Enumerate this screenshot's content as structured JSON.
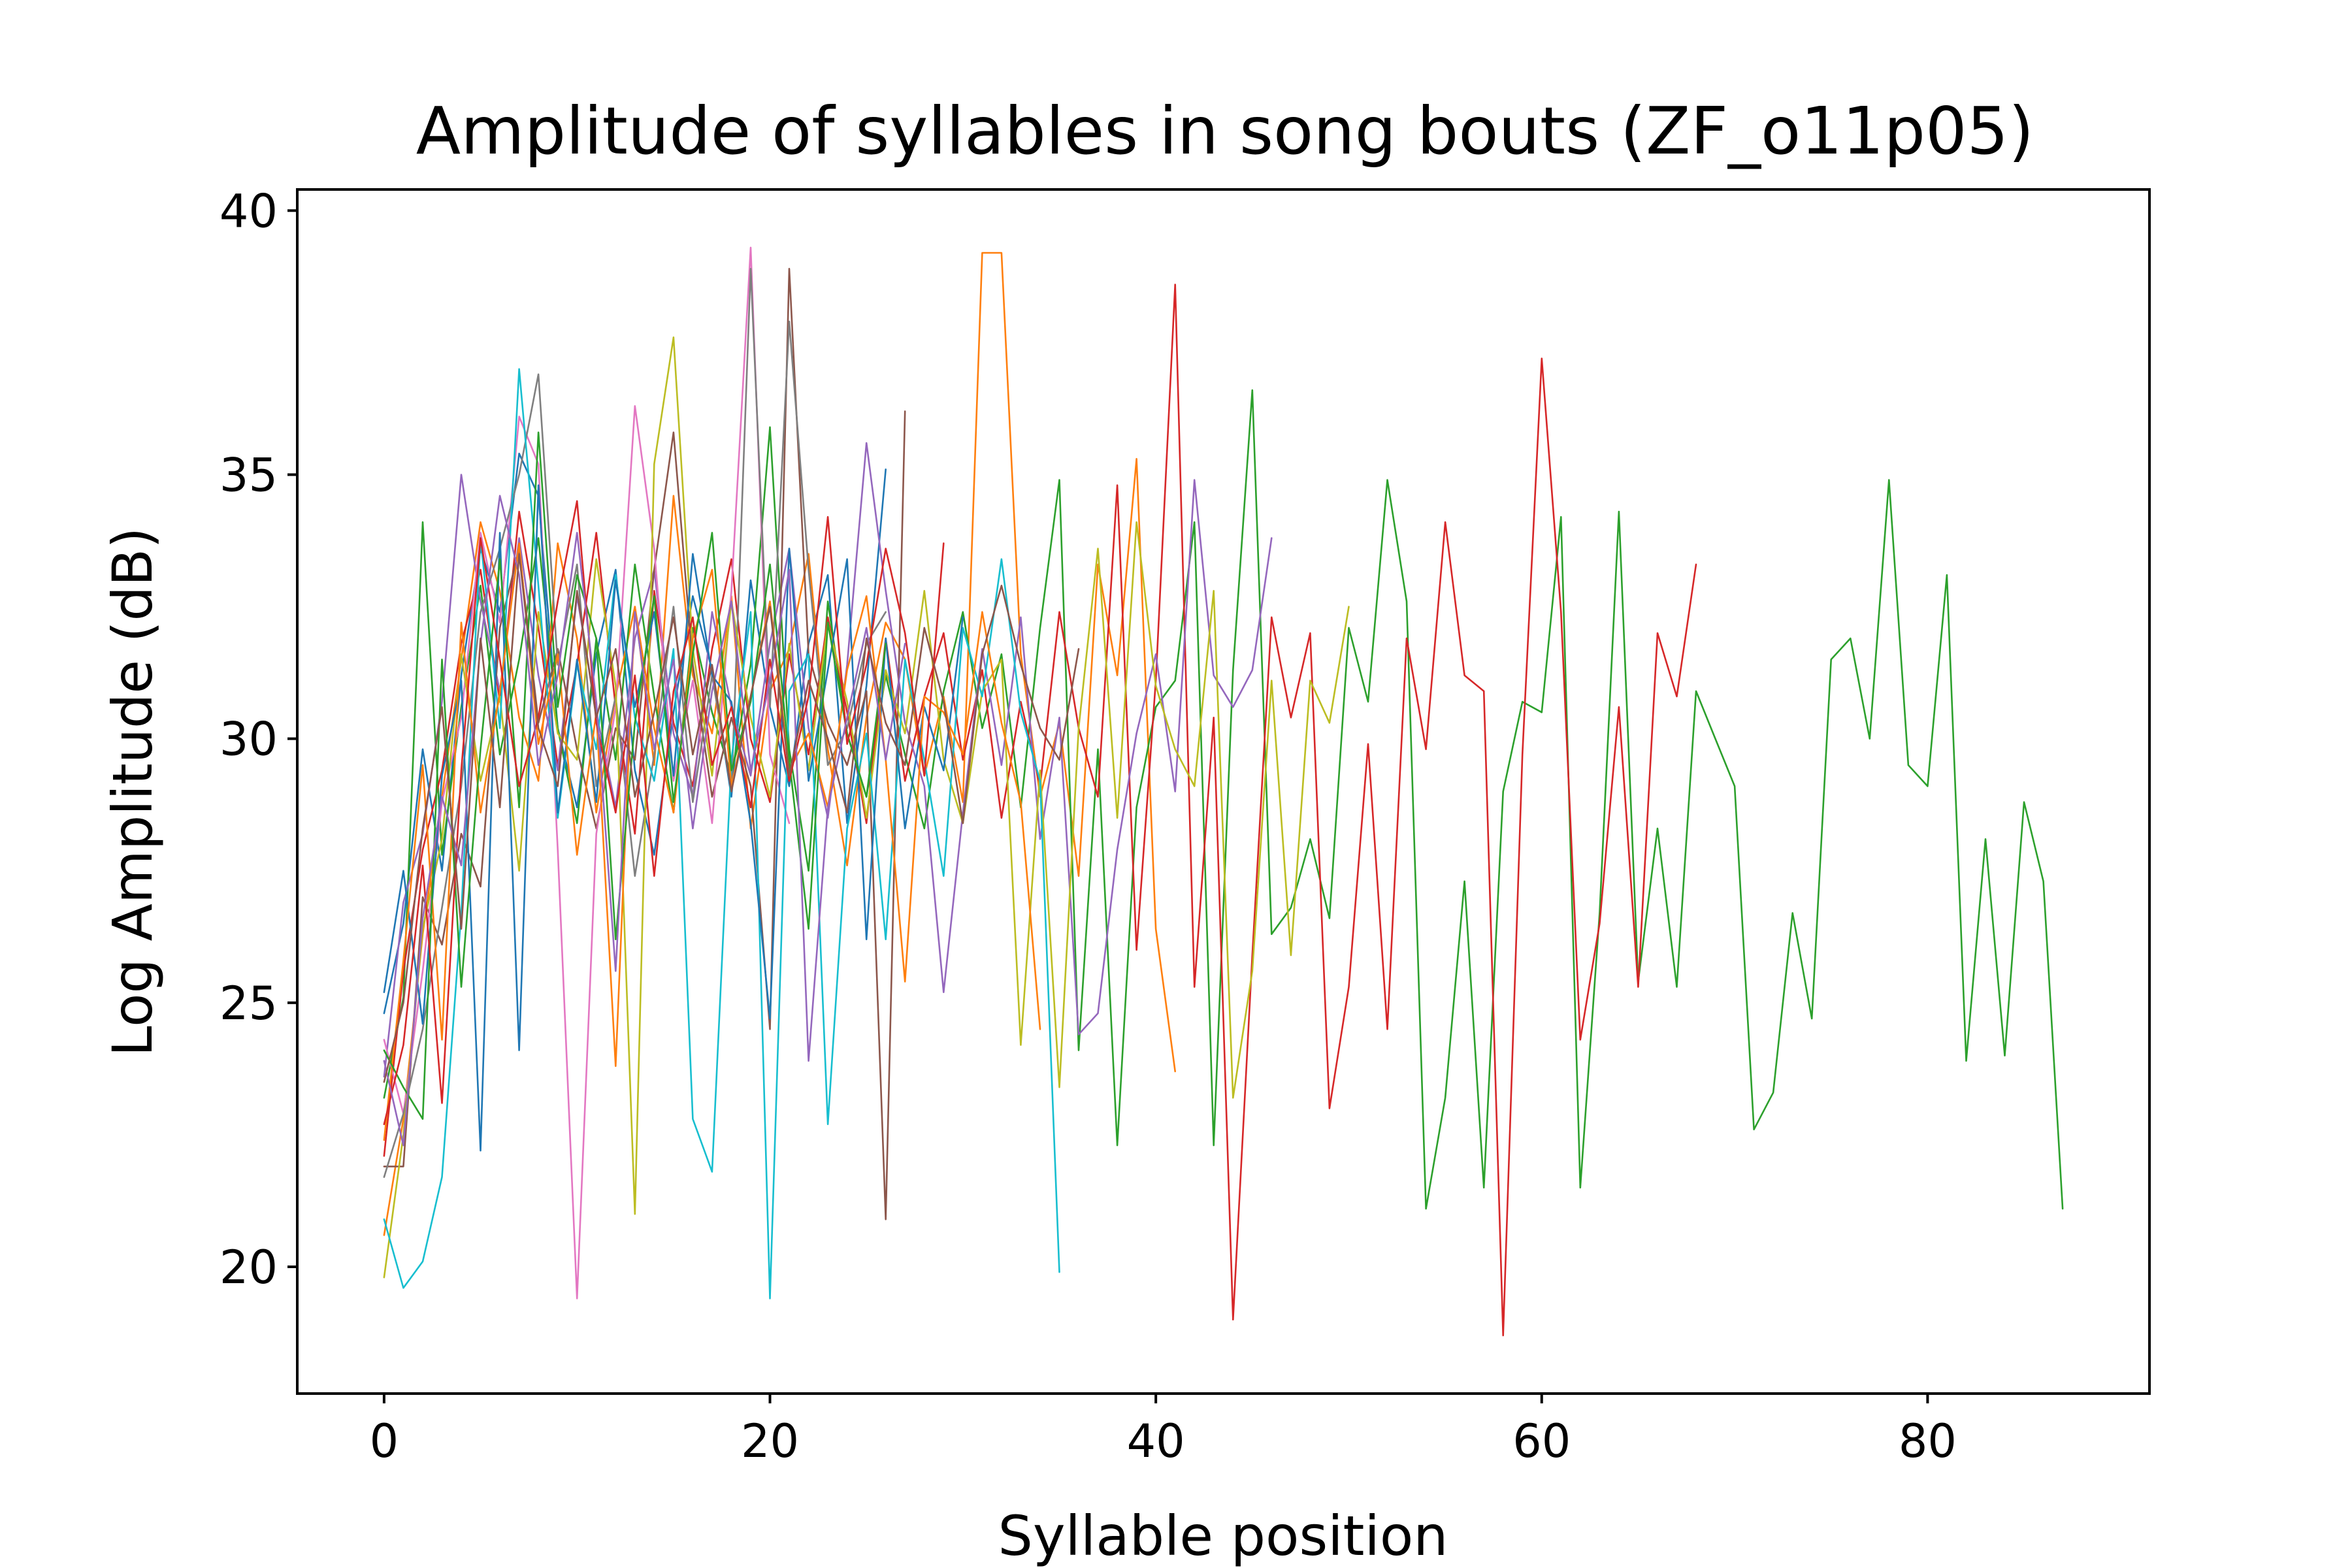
{
  "chart_data": {
    "type": "line",
    "title": "Amplitude of syllables in song bouts (ZF_o11p05)",
    "xlabel": "Syllable position",
    "ylabel": "Log Amplitude (dB)",
    "xlim": [
      -4.5,
      91.5
    ],
    "ylim": [
      17.6,
      40.4
    ],
    "xticks": [
      0,
      20,
      40,
      60,
      80
    ],
    "yticks": [
      20,
      25,
      30,
      35,
      40
    ],
    "grid": false,
    "legend": "none",
    "colors": [
      "#1f77b4",
      "#ff7f0e",
      "#2ca02c",
      "#d62728",
      "#9467bd",
      "#8c564b",
      "#e377c2",
      "#7f7f7f",
      "#bcbd22",
      "#17becf"
    ],
    "series": [
      {
        "x_start": 0,
        "values": [
          24.8,
          26.5,
          29.8,
          27.5,
          31.2,
          33.6,
          32.4,
          35.4,
          34.6,
          30.2,
          28.7,
          31.6,
          33.2,
          29.4,
          27.8,
          30.5,
          32.7,
          31.3,
          28.9,
          33.0,
          30.6,
          29.1,
          31.8,
          33.1,
          28.4,
          31.0,
          35.1
        ]
      },
      {
        "x_start": 0,
        "values": [
          20.6,
          22.8,
          26.3,
          28.9,
          31.5,
          34.1,
          32.8,
          30.4,
          29.2,
          33.7,
          31.9,
          28.6,
          30.8,
          32.5,
          29.5,
          34.6,
          31.2,
          30.1,
          32.7,
          28.3,
          30.9,
          31.7,
          33.5,
          29.8,
          27.6,
          30.4,
          32.2,
          31.5,
          29.3,
          30.8,
          28.8,
          39.2,
          39.2,
          31.6,
          28.9,
          30.3,
          27.4,
          33.3,
          31.2,
          35.3,
          26.4,
          23.7
        ]
      },
      {
        "x_start": 0,
        "values": [
          23.2,
          25.1,
          34.1,
          27.8,
          30.6,
          32.9,
          29.7,
          31.5,
          33.8,
          30.2,
          28.4,
          31.9,
          29.6,
          33.3,
          30.8,
          28.6,
          32.1,
          30.5,
          29.3,
          31.4,
          35.9,
          29.8,
          27.5,
          32.6,
          30.1,
          28.9,
          31.2,
          29.7,
          28.3,
          30.9,
          32.4,
          30.2,
          31.6,
          28.7,
          32.1,
          34.9,
          24.1,
          29.8,
          22.3,
          28.7,
          30.6,
          31.1,
          34.1,
          22.3,
          31.3,
          36.6,
          26.3,
          26.8,
          28.1,
          26.6,
          32.1,
          30.7,
          34.9,
          32.6,
          21.1,
          23.2,
          27.3,
          21.5,
          29.0,
          30.7,
          30.5,
          34.2,
          21.5,
          26.7,
          34.3,
          25.4,
          28.3,
          25.3,
          30.9,
          30.0,
          29.1,
          22.6,
          23.3,
          26.7,
          24.7,
          31.5,
          31.9,
          30.0,
          34.9,
          29.5,
          29.1,
          33.1,
          23.9,
          28.1,
          24.0,
          28.8,
          27.3,
          21.1
        ]
      },
      {
        "x_start": 0,
        "values": [
          22.1,
          25.6,
          27.9,
          29.4,
          31.8,
          33.2,
          30.7,
          34.3,
          32.1,
          29.5,
          31.4,
          33.9,
          30.6,
          28.2,
          32.8,
          30.3,
          29.1,
          31.7,
          33.4,
          30.0,
          28.8,
          31.6,
          29.7,
          32.3,
          30.5,
          28.4,
          31.9,
          29.2,
          30.8,
          32.0,
          29.6,
          31.3,
          28.5,
          30.7,
          29.1,
          32.4,
          30.2,
          28.9,
          34.8,
          26.0,
          31.1,
          38.6,
          25.3,
          30.4,
          19.0,
          25.9,
          32.3,
          30.4,
          32.0,
          23.0,
          25.3,
          29.9,
          24.5,
          31.9,
          29.8,
          34.1,
          31.2,
          30.9,
          18.7,
          29.7,
          37.2,
          32.4,
          24.3,
          26.5,
          30.6,
          25.3,
          32.0,
          30.8,
          33.3
        ]
      },
      {
        "x_start": 0,
        "values": [
          23.6,
          26.9,
          28.2,
          30.7,
          35.0,
          32.6,
          30.9,
          33.8,
          31.2,
          29.4,
          32.7,
          30.5,
          28.7,
          31.9,
          33.2,
          30.1,
          28.9,
          32.4,
          30.6,
          29.3,
          31.8,
          33.6,
          30.2,
          28.5,
          31.4,
          35.6,
          32.8,
          30.3,
          29.1,
          25.2,
          28.6,
          31.7,
          29.5,
          32.3,
          28.1,
          30.4,
          24.4,
          24.8,
          27.9,
          30.1,
          31.6,
          29.0,
          34.9,
          31.2,
          30.6,
          31.3,
          33.8
        ]
      },
      {
        "x_start": 0,
        "values": [
          21.9,
          21.9,
          27.0,
          26.1,
          28.2,
          27.2,
          32.1,
          33.6,
          30.3,
          31.7,
          29.8,
          28.3,
          30.2,
          29.6,
          33.2,
          35.8,
          31.4,
          28.9,
          30.4,
          29.1,
          24.5,
          38.9,
          31.6,
          30.3,
          29.5,
          30.9,
          20.9,
          36.2
        ]
      },
      {
        "x_start": 0,
        "values": [
          24.3,
          22.9,
          25.6,
          28.8,
          30.4,
          33.9,
          32.2,
          36.1,
          35.2,
          27.9,
          19.4,
          28.2,
          30.6,
          36.3,
          33.6,
          29.2,
          31.1,
          28.4,
          32.8,
          39.3,
          29.7,
          28.4
        ]
      },
      {
        "x_start": 0,
        "values": [
          21.7,
          22.9,
          24.5,
          26.8,
          29.1,
          32.4,
          33.6,
          35.0,
          36.9,
          31.4,
          33.3,
          29.1,
          30.8,
          27.4,
          29.7,
          32.5,
          28.8,
          31.2,
          29.0,
          38.9,
          30.6,
          37.9,
          33.2,
          29.5,
          30.2,
          31.8,
          32.4
        ]
      },
      {
        "x_start": 0,
        "values": [
          19.8,
          22.5,
          26.4,
          28.1,
          31.6,
          29.2,
          30.8,
          27.5,
          32.4,
          30.1,
          29.6,
          33.4,
          31.0,
          21.0,
          35.2,
          37.6,
          31.7,
          29.3,
          32.6,
          30.4,
          28.9,
          31.8,
          29.4,
          32.2,
          30.7,
          28.5,
          31.3,
          30.1,
          32.8,
          29.6,
          28.4,
          30.9,
          31.5,
          24.2,
          29.4,
          23.4,
          30.2,
          33.6,
          28.5,
          34.1,
          31.0,
          29.8,
          29.1,
          32.8,
          23.2,
          25.6,
          31.1,
          25.9,
          31.1,
          30.3,
          32.5
        ]
      },
      {
        "x_start": 0,
        "values": [
          20.9,
          19.6,
          20.1,
          21.7,
          26.7,
          33.8,
          30.2,
          37.0,
          32.9,
          28.5,
          31.4,
          29.8,
          33.1,
          30.4,
          29.2,
          31.7,
          22.8,
          21.8,
          29.6,
          32.4,
          19.4,
          30.9,
          31.6,
          22.7,
          28.3,
          30.1,
          26.2,
          31.5,
          29.6,
          27.4,
          32.1,
          30.8,
          33.4,
          30.5,
          29.2,
          19.9
        ]
      },
      {
        "x_start": 0,
        "values": [
          25.2,
          27.5,
          24.6,
          29.3,
          31.1,
          22.2,
          33.9,
          24.1,
          34.8,
          28.6,
          31.5,
          28.8,
          33.0,
          30.6,
          32.4,
          29.3,
          33.5,
          31.2,
          30.7,
          28.4,
          24.7,
          33.6,
          29.2,
          31.3,
          33.4,
          26.2,
          31.9,
          28.3,
          30.6,
          29.4,
          32.3
        ]
      },
      {
        "x_start": 0,
        "values": [
          22.4,
          25.8,
          29.5,
          24.3,
          32.2,
          28.6,
          30.9,
          33.7,
          29.9,
          31.6,
          27.8,
          30.5,
          23.8,
          32.5,
          30.2,
          28.6,
          31.9,
          33.2,
          29.1,
          30.8,
          32.6,
          29.4,
          30.1,
          28.7,
          31.3,
          32.7,
          29.6,
          25.4,
          30.8,
          30.5,
          29.7,
          32.4,
          30.3,
          28.8,
          24.5
        ]
      },
      {
        "x_start": 0,
        "values": [
          24.1,
          23.4,
          22.8,
          31.5,
          25.3,
          29.8,
          33.4,
          28.7,
          35.8,
          30.6,
          33.1,
          31.9,
          26.2,
          30.3,
          32.7,
          28.8,
          31.6,
          33.9,
          29.4,
          30.7,
          33.3,
          29.6,
          26.4,
          32.2,
          30.1,
          28.9,
          31.8
        ]
      },
      {
        "x_start": 0,
        "values": [
          22.7,
          24.2,
          27.6,
          23.1,
          29.4,
          33.8,
          31.5,
          29.1,
          30.4,
          32.6,
          34.5,
          30.3,
          28.6,
          31.2,
          27.4,
          30.9,
          32.3,
          29.5,
          30.6,
          28.7,
          31.5,
          29.2,
          30.8,
          34.2,
          29.9,
          31.4,
          33.6,
          32.0,
          29.3,
          33.7
        ]
      },
      {
        "x_start": 0,
        "values": [
          23.9,
          22.3,
          26.6,
          28.9,
          27.6,
          31.8,
          34.6,
          33.1,
          29.5,
          31.2,
          33.9,
          30.7,
          25.6,
          32.4,
          29.8,
          31.5,
          28.3,
          30.9,
          32.6,
          29.4,
          31.1,
          33.2,
          23.9,
          28.7,
          30.4,
          32.1,
          29.6,
          31.8
        ]
      },
      {
        "x_start": 0,
        "values": [
          23.5,
          25.0,
          28.3,
          30.6,
          26.4,
          31.9,
          28.7,
          33.5,
          30.2,
          29.1,
          32.8,
          30.4,
          31.7,
          28.9,
          30.5,
          32.3,
          29.7,
          31.4,
          29.0,
          30.8,
          32.5,
          29.3,
          31.1,
          30.0,
          28.6,
          31.9,
          30.3,
          29.5,
          32.1,
          30.7,
          28.4,
          31.6,
          32.9,
          31.4,
          30.2,
          29.6,
          31.7
        ]
      }
    ]
  }
}
